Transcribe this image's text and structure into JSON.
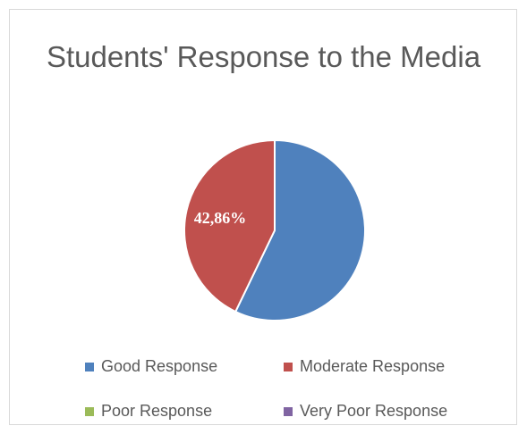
{
  "chart_data": {
    "type": "pie",
    "title": "Students' Response to the Media",
    "categories": [
      "Good Response",
      "Moderate Response",
      "Poor Response",
      "Very Poor Response"
    ],
    "values": [
      57.14,
      42.86,
      0,
      0
    ],
    "colors": [
      "#4f81bd",
      "#c0504d",
      "#9bbb59",
      "#8064a2"
    ],
    "data_labels": [
      "",
      "42,86%",
      "",
      ""
    ],
    "legend": "bottom"
  }
}
